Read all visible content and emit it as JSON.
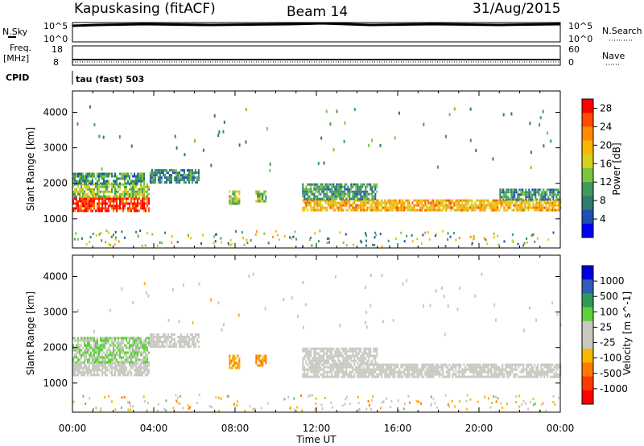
{
  "header": {
    "station": "Kapuskasing (fitACF)",
    "beam": "Beam 14",
    "date": "31/Aug/2015"
  },
  "strips": {
    "left_top_label": "N.Sky",
    "left_top_ticks": [
      "10^5",
      "10^0"
    ],
    "right_top_label": "N.Search",
    "right_top_ticks": [
      "10^5",
      "10^0"
    ],
    "left_freq_label": "Freq.",
    "left_freq_unit": "[MHz]",
    "left_freq_ticks": [
      "18",
      "8"
    ],
    "right_nave_label": "Nave",
    "right_nave_ticks": [
      "60",
      "0"
    ],
    "cpid_label": "CPID",
    "cpid_value": "tau (fast) 503"
  },
  "chart_data": [
    {
      "type": "heatmap",
      "name": "power",
      "ylabel": "Slant Range [km]",
      "xlabel": "Time UT",
      "x_ticks": [
        "00:00",
        "04:00",
        "08:00",
        "12:00",
        "16:00",
        "20:00",
        "00:00"
      ],
      "x_range_hours": [
        0,
        24
      ],
      "y_ticks": [
        1000,
        2000,
        3000,
        4000
      ],
      "y_range_km": [
        180,
        4600
      ],
      "colorbar": {
        "label": "Power [dB]",
        "ticks": [
          "4",
          "8",
          "12",
          "16",
          "20",
          "24",
          "28"
        ],
        "range": [
          0,
          30
        ],
        "colors": [
          "#0000ff",
          "#1f4fb5",
          "#2e7d6b",
          "#3f9a5c",
          "#7cc53d",
          "#d6d11c",
          "#f5b800",
          "#ff8a00",
          "#ff4a00",
          "#ff0000"
        ]
      },
      "echo_regions": [
        {
          "t0": 0.0,
          "t1": 3.8,
          "r0": 1200,
          "r1": 1600,
          "value": 27
        },
        {
          "t0": 0.0,
          "t1": 3.8,
          "r0": 1600,
          "r1": 2000,
          "value": 14
        },
        {
          "t0": 0.0,
          "t1": 3.5,
          "r0": 2000,
          "r1": 2300,
          "value": 10
        },
        {
          "t0": 3.8,
          "t1": 6.2,
          "r0": 2000,
          "r1": 2400,
          "value": 8
        },
        {
          "t0": 7.7,
          "t1": 8.2,
          "r0": 1400,
          "r1": 1800,
          "value": 14
        },
        {
          "t0": 9.0,
          "t1": 9.5,
          "r0": 1500,
          "r1": 1800,
          "value": 12
        },
        {
          "t0": 11.3,
          "t1": 24.0,
          "r0": 1250,
          "r1": 1550,
          "value": 20
        },
        {
          "t0": 11.3,
          "t1": 15.0,
          "r0": 1550,
          "r1": 2000,
          "value": 10
        },
        {
          "t0": 21.0,
          "t1": 24.0,
          "r0": 1550,
          "r1": 1850,
          "value": 9
        }
      ]
    },
    {
      "type": "heatmap",
      "name": "velocity",
      "ylabel": "Slant Range [km]",
      "xlabel": "Time UT",
      "x_ticks": [
        "00:00",
        "04:00",
        "08:00",
        "12:00",
        "16:00",
        "20:00",
        "00:00"
      ],
      "x_range_hours": [
        0,
        24
      ],
      "y_ticks": [
        1000,
        2000,
        3000,
        4000
      ],
      "y_range_km": [
        180,
        4600
      ],
      "colorbar": {
        "label": "Velocity [m s^-1]",
        "ticks": [
          "1000",
          "500",
          "100",
          "25",
          "-25",
          "-100",
          "-500",
          "-1000"
        ],
        "colors": [
          "#0000dd",
          "#2f5db5",
          "#2e9a58",
          "#5ed23a",
          "#c8c8c0",
          "#c8c8c0",
          "#f5b800",
          "#ff7a00",
          "#ff3a00",
          "#ff0000"
        ]
      },
      "echo_regions": [
        {
          "t0": 0.0,
          "t1": 3.8,
          "r0": 1200,
          "r1": 1600,
          "value": 0
        },
        {
          "t0": 0.0,
          "t1": 3.8,
          "r0": 1600,
          "r1": 2300,
          "value": 100
        },
        {
          "t0": 3.8,
          "t1": 6.2,
          "r0": 2000,
          "r1": 2400,
          "value": 0
        },
        {
          "t0": 7.7,
          "t1": 8.2,
          "r0": 1400,
          "r1": 1800,
          "value": -100
        },
        {
          "t0": 9.0,
          "t1": 9.5,
          "r0": 1500,
          "r1": 1800,
          "value": -100
        },
        {
          "t0": 11.3,
          "t1": 24.0,
          "r0": 1200,
          "r1": 1550,
          "value": 0
        },
        {
          "t0": 11.3,
          "t1": 15.0,
          "r0": 1550,
          "r1": 2000,
          "value": 0
        }
      ]
    }
  ]
}
